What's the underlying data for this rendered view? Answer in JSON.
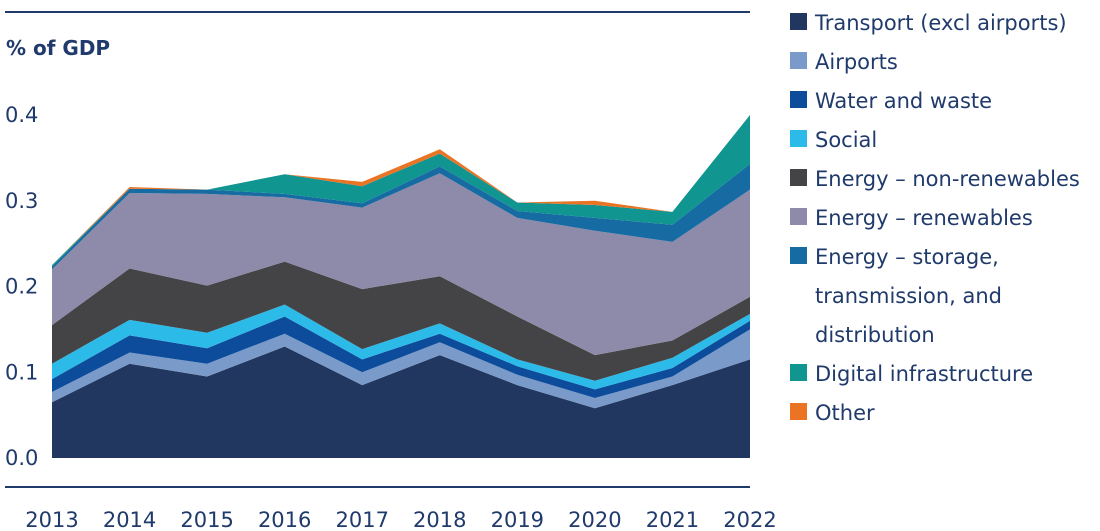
{
  "chart_data": {
    "type": "area",
    "stacked": true,
    "title": "",
    "ylabel": "% of GDP",
    "xlabel": "",
    "ylim": [
      0,
      0.4
    ],
    "yticks": [
      "0.0",
      "0.1",
      "0.2",
      "0.3",
      "0.4"
    ],
    "x": [
      "2013",
      "2014",
      "2015",
      "2016",
      "2017",
      "2018",
      "2019",
      "2020",
      "2021",
      "2022"
    ],
    "grid": false,
    "legend_position": "right",
    "series": [
      {
        "name": "Transport (excl airports)",
        "color": "#22375f",
        "values": [
          0.065,
          0.11,
          0.095,
          0.13,
          0.085,
          0.12,
          0.085,
          0.058,
          0.085,
          0.115
        ]
      },
      {
        "name": "Airports",
        "color": "#7a9bc9",
        "values": [
          0.012,
          0.013,
          0.015,
          0.015,
          0.015,
          0.015,
          0.012,
          0.012,
          0.01,
          0.035
        ]
      },
      {
        "name": "Water and waste",
        "color": "#0c4c9b",
        "values": [
          0.015,
          0.02,
          0.018,
          0.02,
          0.015,
          0.01,
          0.01,
          0.01,
          0.01,
          0.01
        ]
      },
      {
        "name": "Social",
        "color": "#2cbbe8",
        "values": [
          0.018,
          0.018,
          0.018,
          0.014,
          0.012,
          0.012,
          0.008,
          0.01,
          0.012,
          0.008
        ]
      },
      {
        "name": "Energy – non-renewables",
        "color": "#444346",
        "values": [
          0.045,
          0.06,
          0.055,
          0.05,
          0.07,
          0.055,
          0.05,
          0.03,
          0.02,
          0.02
        ]
      },
      {
        "name": "Energy – renewables",
        "color": "#8e8aa9",
        "values": [
          0.065,
          0.088,
          0.107,
          0.075,
          0.095,
          0.12,
          0.115,
          0.145,
          0.115,
          0.125
        ]
      },
      {
        "name": "Energy – storage, transmission, and distribution",
        "color": "#156ba2",
        "values": [
          0.003,
          0.005,
          0.005,
          0.004,
          0.005,
          0.008,
          0.008,
          0.015,
          0.02,
          0.03
        ]
      },
      {
        "name": "Digital infrastructure",
        "color": "#119591",
        "values": [
          0.002,
          0.0,
          0.0,
          0.023,
          0.02,
          0.015,
          0.01,
          0.015,
          0.015,
          0.057
        ]
      },
      {
        "name": "Other",
        "color": "#ea7424",
        "values": [
          0.0,
          0.002,
          0.0,
          0.0,
          0.005,
          0.005,
          0.0,
          0.005,
          0.0,
          0.0
        ]
      }
    ]
  }
}
